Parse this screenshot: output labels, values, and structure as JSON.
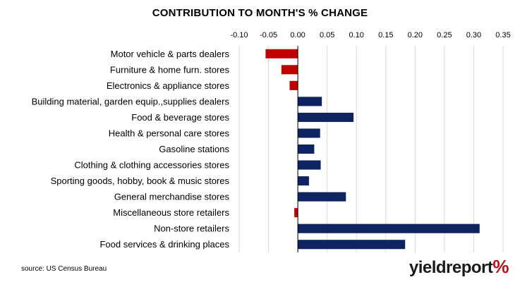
{
  "chart_data": {
    "type": "bar",
    "orientation": "horizontal",
    "title": "CONTRIBUTION TO MONTH'S % CHANGE",
    "categories": [
      "Motor vehicle & parts dealers",
      "Furniture & home furn. stores",
      "Electronics & appliance stores",
      "Building material, garden equip.,supplies dealers",
      "Food & beverage stores",
      "Health & personal care stores",
      "Gasoline stations",
      "Clothing & clothing accessories stores",
      "Sporting goods, hobby, book & music stores",
      "General merchandise stores",
      "Miscellaneous store retailers",
      "Non-store retailers",
      "Food services & drinking places"
    ],
    "values": [
      -0.055,
      -0.028,
      -0.014,
      0.041,
      0.095,
      0.038,
      0.028,
      0.039,
      0.019,
      0.082,
      -0.006,
      0.31,
      0.183
    ],
    "xlim": [
      -0.1,
      0.35
    ],
    "xticks": [
      "-0.10",
      "-0.05",
      "0.00",
      "0.05",
      "0.10",
      "0.15",
      "0.20",
      "0.25",
      "0.30",
      "0.35"
    ],
    "xtick_values": [
      -0.1,
      -0.05,
      0.0,
      0.05,
      0.1,
      0.15,
      0.2,
      0.25,
      0.3,
      0.35
    ],
    "xaxis_position": "top",
    "grid": true,
    "colors": {
      "positive": "#0d2461",
      "negative": "#c00000",
      "grid": "#d9d9d9",
      "axis": "#000000"
    }
  },
  "footer": {
    "source": "source: US Census Bureau",
    "logo_text": "yieldreport",
    "logo_symbol": "%"
  }
}
